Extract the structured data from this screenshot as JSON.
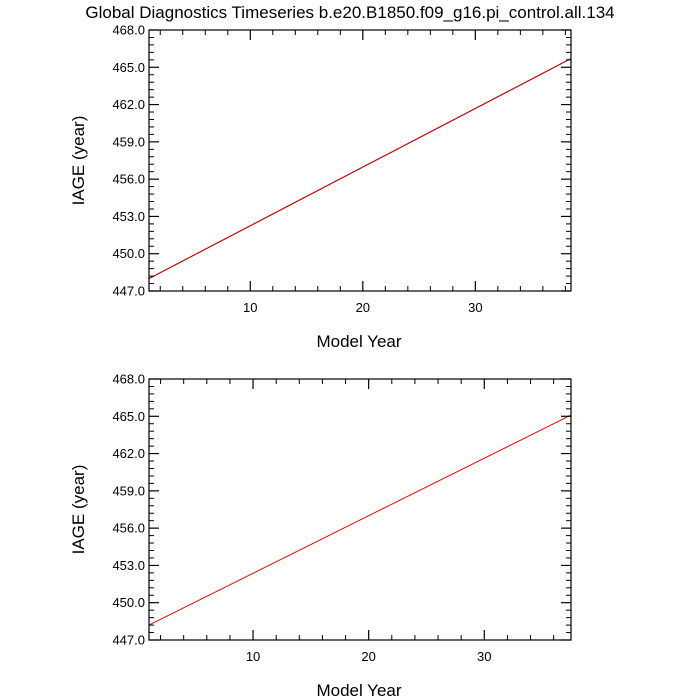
{
  "title": "Global Diagnostics Timeseries b.e20.B1850.f09_g16.pi_control.all.134",
  "chart_data": [
    {
      "type": "line",
      "title": "Global Diagnostics Timeseries b.e20.B1850.f09_g16.pi_control.all.134",
      "xlabel": "Model Year",
      "ylabel": "IAGE (year)",
      "xlim": [
        1,
        38.5
      ],
      "ylim": [
        447.0,
        468.0
      ],
      "x_ticks": [
        10,
        20,
        30
      ],
      "x_tick_labels": [
        "10",
        "20",
        "30"
      ],
      "y_ticks": [
        447,
        450,
        453,
        456,
        459,
        462,
        465,
        468
      ],
      "y_tick_labels": [
        "447.0",
        "450.0",
        "453.0",
        "456.0",
        "459.0",
        "462.0",
        "465.0",
        "468.0"
      ],
      "grid": false,
      "series": [
        {
          "color": "#000000",
          "x": [
            1,
            38.5
          ],
          "y": [
            448.0,
            465.7
          ]
        },
        {
          "color": "#e00000",
          "x": [
            1,
            38.5
          ],
          "y": [
            448.0,
            465.7
          ]
        }
      ]
    },
    {
      "type": "line",
      "title": "",
      "xlabel": "Model Year",
      "ylabel": "IAGE (year)",
      "xlim": [
        1,
        37.5
      ],
      "ylim": [
        447.0,
        468.0
      ],
      "x_ticks": [
        10,
        20,
        30
      ],
      "x_tick_labels": [
        "10",
        "20",
        "30"
      ],
      "y_ticks": [
        447,
        450,
        453,
        456,
        459,
        462,
        465,
        468
      ],
      "y_tick_labels": [
        "447.0",
        "450.0",
        "453.0",
        "456.0",
        "459.0",
        "462.0",
        "465.0",
        "468.0"
      ],
      "grid": false,
      "series": [
        {
          "color": "#ff0000",
          "x": [
            1,
            37.5
          ],
          "y": [
            448.2,
            465.1
          ]
        }
      ]
    }
  ]
}
